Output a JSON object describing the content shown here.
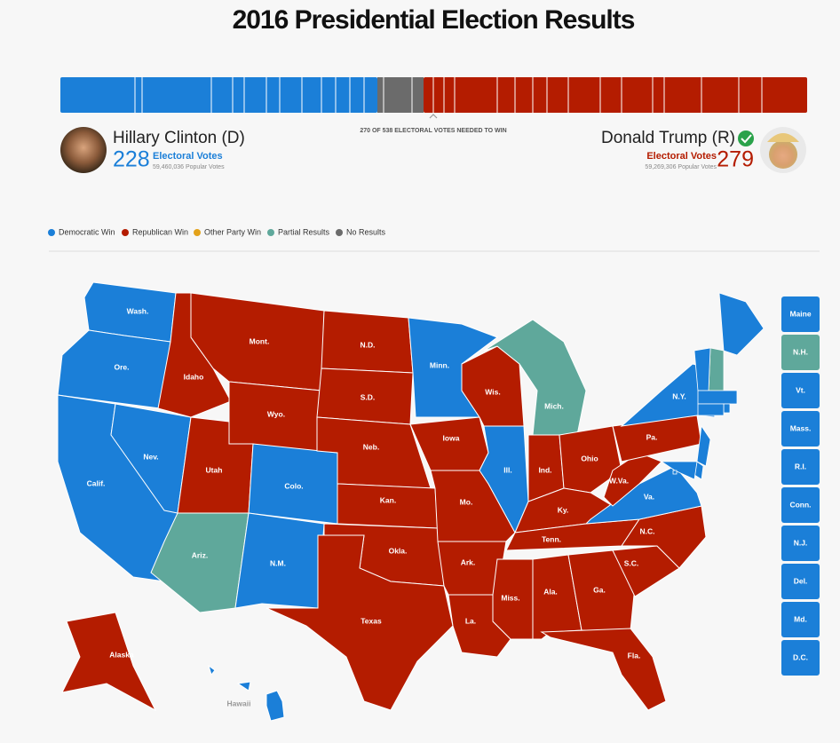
{
  "header": {
    "title": "2016 Presidential Election Results",
    "needed": "270 OF 538 ELECTORAL VOTES NEEDED TO WIN"
  },
  "candidates": [
    {
      "name": "Hillary Clinton (D)",
      "electoral_votes": 228,
      "electoral_label": "Electoral Votes",
      "popular_votes": "59,460,036 Popular Votes",
      "color": "#1b7fd8"
    },
    {
      "name": "Donald Trump (R)",
      "electoral_votes": 279,
      "electoral_label": "Electoral Votes",
      "popular_votes": "59,269,306 Popular Votes",
      "color": "#b41c00"
    }
  ],
  "legend": [
    {
      "label": "Democratic Win",
      "color": "#1b7fd8"
    },
    {
      "label": "Republican Win",
      "color": "#b41c00"
    },
    {
      "label": "Other Party Win",
      "color": "#e3a21a"
    },
    {
      "label": "Partial Results",
      "color": "#5fa89b"
    },
    {
      "label": "No Results",
      "color": "#6b6b6b"
    }
  ],
  "map_states": [
    {
      "label": "Wash.",
      "color": "#1b7fd8"
    },
    {
      "label": "Ore.",
      "color": "#1b7fd8"
    },
    {
      "label": "Calif.",
      "color": "#1b7fd8"
    },
    {
      "label": "Nev.",
      "color": "#1b7fd8"
    },
    {
      "label": "Idaho",
      "color": "#b41c00"
    },
    {
      "label": "Mont.",
      "color": "#b41c00"
    },
    {
      "label": "Wyo.",
      "color": "#b41c00"
    },
    {
      "label": "Utah",
      "color": "#b41c00"
    },
    {
      "label": "Colo.",
      "color": "#1b7fd8"
    },
    {
      "label": "Ariz.",
      "color": "#5fa89b"
    },
    {
      "label": "N.M.",
      "color": "#1b7fd8"
    },
    {
      "label": "N.D.",
      "color": "#b41c00"
    },
    {
      "label": "S.D.",
      "color": "#b41c00"
    },
    {
      "label": "Neb.",
      "color": "#b41c00"
    },
    {
      "label": "Kan.",
      "color": "#b41c00"
    },
    {
      "label": "Okla.",
      "color": "#b41c00"
    },
    {
      "label": "Texas",
      "color": "#b41c00"
    },
    {
      "label": "Minn.",
      "color": "#1b7fd8"
    },
    {
      "label": "Iowa",
      "color": "#b41c00"
    },
    {
      "label": "Mo.",
      "color": "#b41c00"
    },
    {
      "label": "Ark.",
      "color": "#b41c00"
    },
    {
      "label": "La.",
      "color": "#b41c00"
    },
    {
      "label": "Wis.",
      "color": "#b41c00"
    },
    {
      "label": "Ill.",
      "color": "#1b7fd8"
    },
    {
      "label": "Mich.",
      "color": "#5fa89b"
    },
    {
      "label": "Ind.",
      "color": "#b41c00"
    },
    {
      "label": "Ohio",
      "color": "#b41c00"
    },
    {
      "label": "Ky.",
      "color": "#b41c00"
    },
    {
      "label": "Tenn.",
      "color": "#b41c00"
    },
    {
      "label": "Miss.",
      "color": "#b41c00"
    },
    {
      "label": "Ala.",
      "color": "#b41c00"
    },
    {
      "label": "Ga.",
      "color": "#b41c00"
    },
    {
      "label": "Fla.",
      "color": "#b41c00"
    },
    {
      "label": "S.C.",
      "color": "#b41c00"
    },
    {
      "label": "N.C.",
      "color": "#b41c00"
    },
    {
      "label": "Va.",
      "color": "#1b7fd8"
    },
    {
      "label": "W.Va.",
      "color": "#b41c00"
    },
    {
      "label": "Pa.",
      "color": "#b41c00"
    },
    {
      "label": "N.Y.",
      "color": "#1b7fd8"
    },
    {
      "label": "Alaska",
      "color": "#b41c00"
    },
    {
      "label": "Hawaii",
      "color": "#1b7fd8"
    }
  ],
  "small_states": [
    {
      "label": "Maine",
      "color": "#1b7fd8"
    },
    {
      "label": "N.H.",
      "color": "#5fa89b"
    },
    {
      "label": "Vt.",
      "color": "#1b7fd8"
    },
    {
      "label": "Mass.",
      "color": "#1b7fd8"
    },
    {
      "label": "R.I.",
      "color": "#1b7fd8"
    },
    {
      "label": "Conn.",
      "color": "#1b7fd8"
    },
    {
      "label": "N.J.",
      "color": "#1b7fd8"
    },
    {
      "label": "Del.",
      "color": "#1b7fd8"
    },
    {
      "label": "Md.",
      "color": "#1b7fd8"
    },
    {
      "label": "D.C.",
      "color": "#1b7fd8"
    }
  ]
}
